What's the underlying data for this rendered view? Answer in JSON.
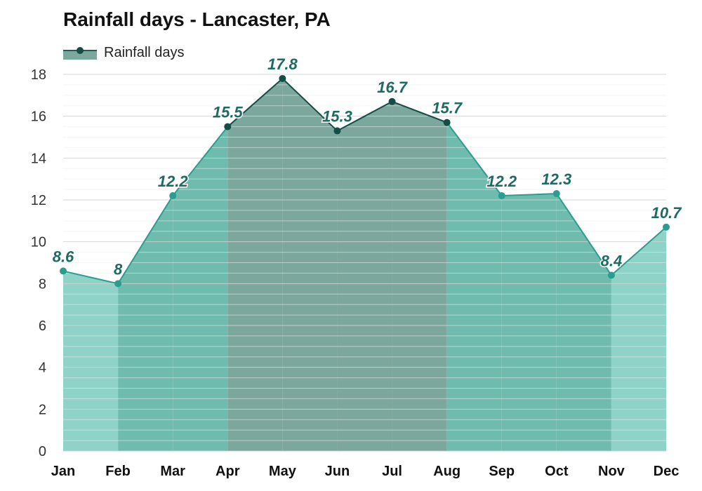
{
  "chart_data": {
    "type": "area",
    "title": "Rainfall days - Lancaster, PA",
    "legend": {
      "label": "Rainfall days",
      "placement": "top-left"
    },
    "categories": [
      "Jan",
      "Feb",
      "Mar",
      "Apr",
      "May",
      "Jun",
      "Jul",
      "Aug",
      "Sep",
      "Oct",
      "Nov",
      "Dec"
    ],
    "series": [
      {
        "name": "Rainfall days",
        "values": [
          8.6,
          8,
          12.2,
          15.5,
          17.8,
          15.3,
          16.7,
          15.7,
          12.2,
          12.3,
          8.4,
          10.7
        ]
      }
    ],
    "data_labels": [
      "8.6",
      "8",
      "12.2",
      "15.5",
      "17.8",
      "15.3",
      "16.7",
      "15.7",
      "12.2",
      "12.3",
      "8.4",
      "10.7"
    ],
    "y_ticks": [
      "0",
      "2",
      "4",
      "6",
      "8",
      "10",
      "12",
      "14",
      "16",
      "18"
    ],
    "ylim": [
      0,
      18
    ],
    "grid": true,
    "colors": {
      "line_high": "#134e45",
      "line_low": "#2a9d8f",
      "fill_high": "#7ca79d",
      "fill_mid": "#6fbcaf",
      "fill_low": "#8fd3c8",
      "label": "#1e6b61"
    }
  }
}
